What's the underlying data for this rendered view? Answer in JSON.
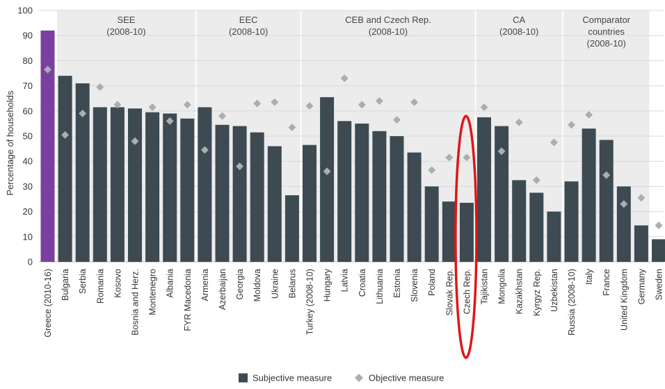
{
  "chart_data": {
    "type": "bar",
    "ylabel": "Percentage of households",
    "ylim": [
      0,
      100
    ],
    "yticks": [
      0,
      10,
      20,
      30,
      40,
      50,
      60,
      70,
      80,
      90,
      100
    ],
    "grid": true,
    "legend_position": "bottom-center",
    "colors": {
      "subjective": "#3d4a52",
      "greece": "#7b3fa0",
      "objective": "#a9aeb1",
      "panel": "#ececec",
      "highlight": "#e01515"
    },
    "groups": [
      {
        "label_lines": [
          "SEE",
          "(2008-10)"
        ],
        "from": 1,
        "to": 8
      },
      {
        "label_lines": [
          "EEC",
          "(2008-10)"
        ],
        "from": 9,
        "to": 14
      },
      {
        "label_lines": [
          "CEB and Czech Rep.",
          "(2008-10)"
        ],
        "from": 15,
        "to": 24
      },
      {
        "label_lines": [
          "CA",
          "(2008-10)"
        ],
        "from": 25,
        "to": 29
      },
      {
        "label_lines": [
          "Comparator",
          "countries",
          "(2008-10)"
        ],
        "from": 30,
        "to": 34
      }
    ],
    "categories": [
      "Greece (2010-16)",
      "Bulgaria",
      "Serbia",
      "Romania",
      "Kosovo",
      "Bosnia and Herz.",
      "Montenegro",
      "Albania",
      "FYR Macedonia",
      "Armenia",
      "Azerbaijan",
      "Georgia",
      "Moldova",
      "Ukraine",
      "Belarus",
      "Turkey (2008-10)",
      "Hungary",
      "Latvia",
      "Croatia",
      "Lithuania",
      "Estonia",
      "Slovenia",
      "Poland",
      "Slovak Rep.",
      "Czech Rep.",
      "Tajikistan",
      "Mongolia",
      "Kazakhstan",
      "Kyrgyz Rep.",
      "Uzbekistan",
      "Russia (2008-10)",
      "Italy",
      "France",
      "United Kingdom",
      "Germany",
      "Sweden"
    ],
    "series": [
      {
        "name": "Subjective measure",
        "values": [
          92,
          74,
          71,
          61.5,
          61.5,
          61,
          59.5,
          59,
          57,
          61.5,
          54.5,
          54,
          51.5,
          46,
          26.5,
          46.5,
          65.5,
          56,
          55,
          52,
          50,
          43.5,
          30,
          24,
          23.5,
          57.5,
          54,
          32.5,
          27.5,
          20,
          32,
          53,
          48.5,
          30,
          14.5,
          9
        ]
      },
      {
        "name": "Objective measure",
        "values": [
          76.5,
          50.5,
          59,
          69.5,
          62.5,
          48,
          61.5,
          56,
          62.5,
          44.5,
          58,
          38,
          63,
          63.5,
          53.5,
          62,
          36,
          73,
          62.5,
          64,
          56.5,
          63.5,
          36.5,
          41.5,
          41.5,
          61.5,
          44,
          55.5,
          32.5,
          47.5,
          54.5,
          58.5,
          34.5,
          23,
          25.5,
          14.5
        ]
      }
    ],
    "highlighted_category": "Czech Rep."
  }
}
